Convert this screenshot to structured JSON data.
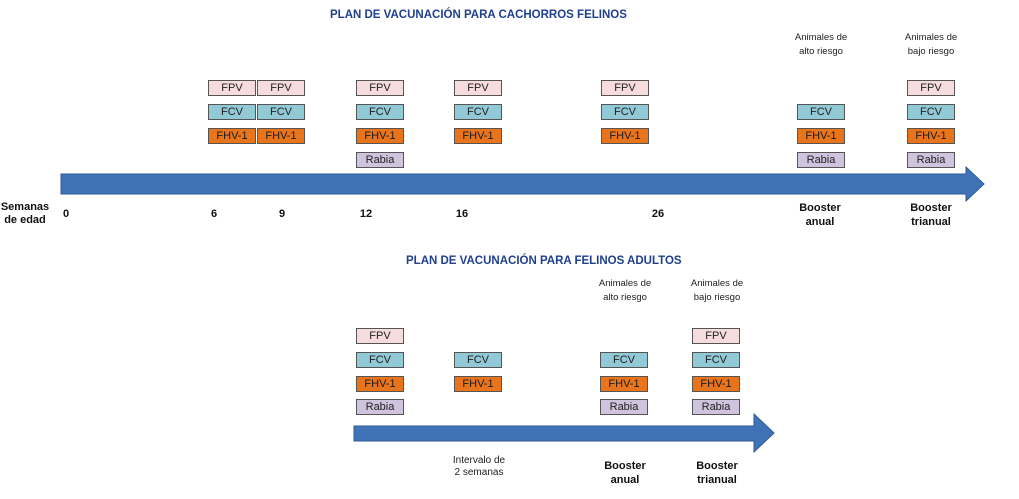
{
  "kitten": {
    "title": "PLAN DE VACUNACIÓN PARA CACHORROS FELINOS",
    "axis_label": "Semanas de edad",
    "weeks": [
      "0",
      "6",
      "9",
      "12",
      "16",
      "26"
    ],
    "booster_annual": "Booster anual",
    "booster_triennial": "Booster trianual",
    "high_risk": "Animales de alto riesgo",
    "low_risk": "Animales de bajo riesgo",
    "cols": [
      [
        "FPV",
        "FCV",
        "FHV-1"
      ],
      [
        "FPV",
        "FCV",
        "FHV-1"
      ],
      [
        "FPV",
        "FCV",
        "FHV-1",
        "Rabia"
      ],
      [
        "FPV",
        "FCV",
        "FHV-1"
      ],
      [
        "FPV",
        "FCV",
        "FHV-1"
      ],
      [
        "FCV",
        "FHV-1",
        "Rabia"
      ],
      [
        "FPV",
        "FCV",
        "FHV-1",
        "Rabia"
      ]
    ]
  },
  "adult": {
    "title": "PLAN DE VACUNACIÓN PARA  FELINOS ADULTOS",
    "interval": "Intervalo de 2 semanas",
    "booster_annual": "Booster anual",
    "booster_triennial": "Booster trianual",
    "high_risk": "Animales de alto riesgo",
    "low_risk": "Animales de bajo riesgo",
    "cols": [
      [
        "FPV",
        "FCV",
        "FHV-1",
        "Rabia"
      ],
      [
        "FCV",
        "FHV-1"
      ],
      [
        "FCV",
        "FHV-1",
        "Rabia"
      ],
      [
        "FPV",
        "FCV",
        "FHV-1",
        "Rabia"
      ]
    ]
  },
  "colors": {
    "arrow": "#3f72b7",
    "FPV": "#f6dcdc",
    "FCV": "#92c9d6",
    "FHV-1": "#e8741c",
    "Rabia": "#cfc3de",
    "title": "#1f3f8f"
  }
}
